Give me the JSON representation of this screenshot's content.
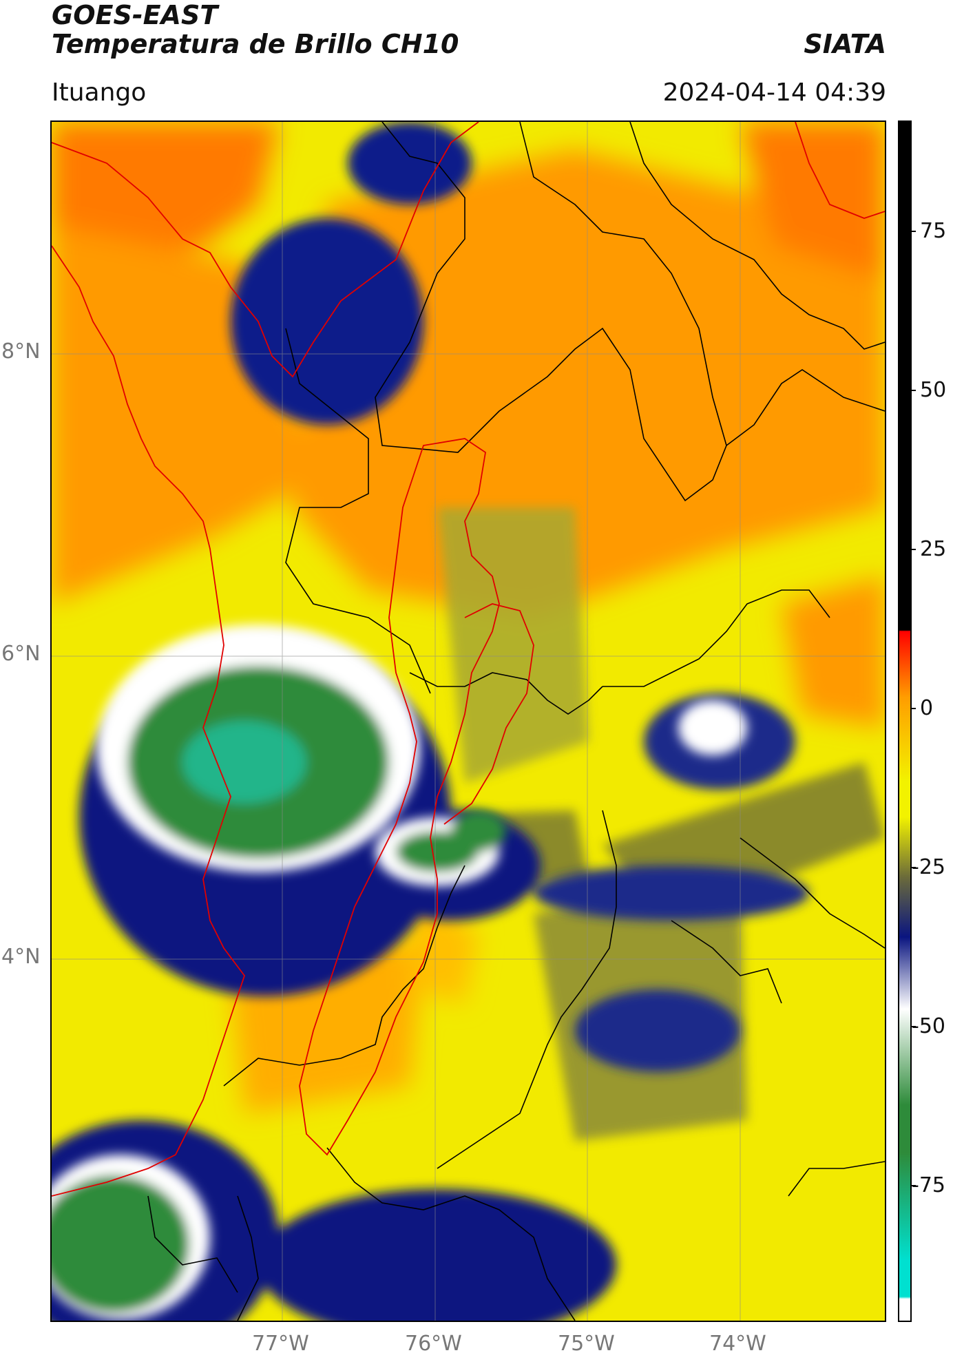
{
  "header": {
    "satellite": "GOES-EAST",
    "product": "Temperatura de Brillo CH10",
    "org": "SIATA",
    "region": "Ituango",
    "timestamp": "2024-04-14 04:39"
  },
  "map": {
    "lon_ticks": [
      "77°W",
      "76°W",
      "75°W",
      "74°W"
    ],
    "lat_ticks": [
      "8°N",
      "6°N",
      "4°N"
    ]
  },
  "colorbar": {
    "ticks": [
      "75",
      "50",
      "25",
      "0",
      "-25",
      "-50",
      "-75"
    ],
    "colors": {
      "black": "#000000",
      "red": "#ff0000",
      "orange": "#ff9d00",
      "yellow": "#f2f200",
      "olive": "#6b6b3a",
      "navy": "#0a1580",
      "white": "#ffffff",
      "green": "#2e8b3a",
      "cyan": "#00e0d0"
    }
  }
}
